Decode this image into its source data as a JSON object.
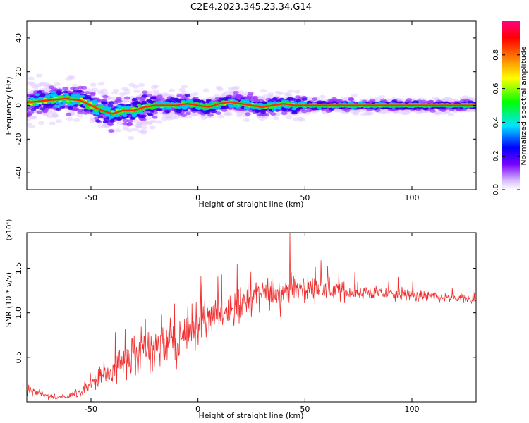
{
  "figure": {
    "title": "C2E4.2023.345.23.34.G14"
  },
  "chart_data": [
    {
      "type": "heatmap",
      "xlabel": "Height of straight line (km)",
      "ylabel": "Frequency (Hz)",
      "xlim": [
        -80,
        130
      ],
      "ylim": [
        -50,
        50
      ],
      "x_ticks": [
        -50,
        0,
        50,
        100
      ],
      "y_ticks": [
        -40,
        -20,
        0,
        20,
        40
      ],
      "grid": false,
      "colorbar": {
        "label": "Normalized spectral amplitude",
        "range": [
          0,
          1
        ],
        "ticks": [
          "0.0",
          "0.2",
          "0.4",
          "0.6",
          "0.8"
        ],
        "colormap": [
          "#ffffff",
          "#d9c2ff",
          "#7a00ff",
          "#0000ff",
          "#00e5ff",
          "#00ff00",
          "#ffff00",
          "#ff8000",
          "#ff0000",
          "#ff0080"
        ]
      },
      "ridge": {
        "x": [
          -78,
          -70,
          -62,
          -55,
          -50,
          -45,
          -40,
          -35,
          -30,
          -25,
          -20,
          -15,
          -10,
          -5,
          0,
          5,
          10,
          15,
          20,
          25,
          30,
          35,
          40,
          45,
          50,
          60,
          70,
          80,
          90,
          100,
          110,
          120,
          130
        ],
        "y": [
          2,
          3,
          4,
          3,
          0,
          -3,
          -5,
          -3,
          -3,
          -1,
          0,
          0,
          0,
          1,
          0,
          -1,
          1,
          2,
          1,
          0,
          -1,
          0,
          1,
          0,
          0,
          0,
          0,
          0,
          0,
          0,
          0,
          0,
          0
        ]
      }
    },
    {
      "type": "line",
      "xlabel": "Height of straight line (km)",
      "ylabel": "SNR (10 * v/v)",
      "yscale_label": "(x10⁴)",
      "xlim": [
        -80,
        130
      ],
      "ylim": [
        0,
        1.9
      ],
      "x_ticks": [
        -50,
        0,
        50,
        100
      ],
      "y_ticks": [
        0.5,
        1.0,
        1.5
      ],
      "grid": false,
      "series": [
        {
          "color": "#f03030",
          "x": [
            -80,
            -75,
            -70,
            -65,
            -60,
            -55,
            -50,
            -45,
            -40,
            -35,
            -30,
            -25,
            -20,
            -15,
            -10,
            -5,
            0,
            5,
            10,
            15,
            20,
            25,
            30,
            35,
            40,
            45,
            50,
            55,
            60,
            65,
            70,
            75,
            80,
            85,
            90,
            95,
            100,
            105,
            110,
            115,
            120,
            125,
            130
          ],
          "mean": [
            0.15,
            0.1,
            0.06,
            0.05,
            0.06,
            0.1,
            0.2,
            0.28,
            0.35,
            0.45,
            0.5,
            0.55,
            0.6,
            0.65,
            0.7,
            0.78,
            0.85,
            0.92,
            1.0,
            1.05,
            1.1,
            1.15,
            1.2,
            1.22,
            1.25,
            1.27,
            1.28,
            1.27,
            1.26,
            1.25,
            1.24,
            1.23,
            1.23,
            1.22,
            1.21,
            1.2,
            1.2,
            1.19,
            1.18,
            1.17,
            1.16,
            1.15,
            1.15
          ],
          "noise": [
            0.08,
            0.06,
            0.04,
            0.04,
            0.05,
            0.08,
            0.12,
            0.15,
            0.2,
            0.25,
            0.3,
            0.32,
            0.35,
            0.38,
            0.35,
            0.32,
            0.3,
            0.28,
            0.27,
            0.26,
            0.25,
            0.24,
            0.24,
            0.24,
            0.24,
            0.22,
            0.2,
            0.18,
            0.16,
            0.15,
            0.13,
            0.12,
            0.11,
            0.1,
            0.1,
            0.09,
            0.09,
            0.08,
            0.08,
            0.08,
            0.07,
            0.07,
            0.07
          ],
          "peak": {
            "x": 43,
            "y": 1.92
          }
        }
      ]
    }
  ]
}
